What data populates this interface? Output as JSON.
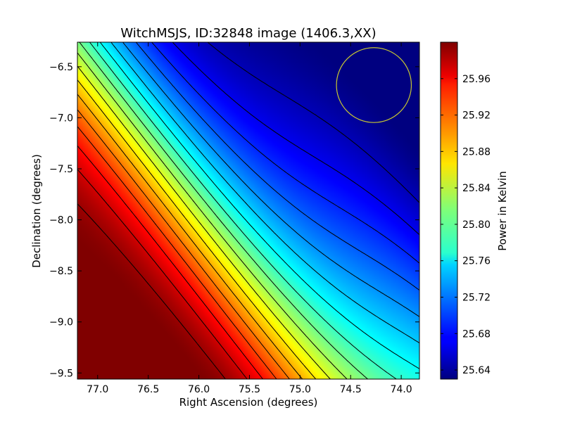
{
  "chart_data": {
    "type": "heatmap",
    "title": "WitchMSJS, ID:32848 image (1406.3,XX)",
    "xlabel": "Right Ascension (degrees)",
    "ylabel": "Declination (degrees)",
    "xlim": [
      77.2,
      73.82
    ],
    "ylim": [
      -9.56,
      -6.26
    ],
    "x_ticks": [
      77.0,
      76.5,
      76.0,
      75.5,
      75.0,
      74.5,
      74.0
    ],
    "x_tick_labels": [
      "77.0",
      "76.5",
      "76.0",
      "75.5",
      "75.0",
      "74.5",
      "74.0"
    ],
    "y_ticks": [
      -6.5,
      -7.0,
      -7.5,
      -8.0,
      -8.5,
      -9.0,
      -9.5
    ],
    "y_tick_labels": [
      "−6.5",
      "−7.0",
      "−7.5",
      "−8.0",
      "−8.5",
      "−9.0",
      "−9.5"
    ],
    "colorbar": {
      "label": "Power in Kelvin",
      "range": [
        25.63,
        26.0
      ],
      "ticks": [
        25.64,
        25.68,
        25.72,
        25.76,
        25.8,
        25.84,
        25.88,
        25.92,
        25.96
      ],
      "tick_labels": [
        "25.64",
        "25.68",
        "25.72",
        "25.76",
        "25.80",
        "25.84",
        "25.88",
        "25.92",
        "25.96"
      ],
      "colormap": "jet"
    },
    "field": {
      "description_values": "approximate power field: minimum at upper-right, maximum at lower-left",
      "min_point": {
        "ra": 74.0,
        "dec": -6.4,
        "value": 25.63
      },
      "max_point": {
        "ra": 76.9,
        "dec": -8.9,
        "value": 26.0
      }
    },
    "contour_levels": [
      25.65,
      25.67,
      25.69,
      25.71,
      25.73,
      25.75,
      25.77,
      25.79,
      25.81,
      25.83,
      25.85,
      25.87,
      25.89,
      25.91,
      25.93,
      25.95,
      25.97,
      25.99
    ],
    "beam_marker": {
      "ra": 74.27,
      "dec": -6.68,
      "radius_deg": 0.37,
      "color": "#c8c832"
    },
    "grid": false
  }
}
